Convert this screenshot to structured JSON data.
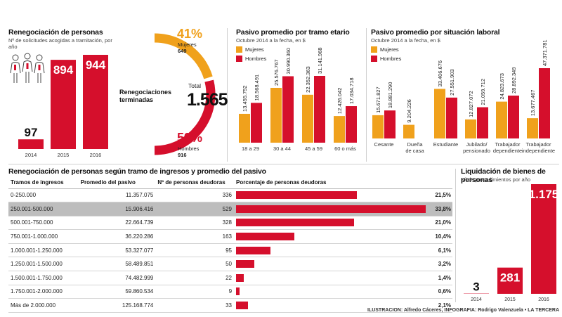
{
  "colors": {
    "red": "#d50f2c",
    "orange": "#f0a11c",
    "gray": "#bdbdbd"
  },
  "reneg": {
    "title": "Renegociación de personas",
    "subtitle": "Nº de solicitudes acogidas a tramitación, por año"
  },
  "donut": {
    "center_label": "Renegociaciones terminadas",
    "total_label": "Total",
    "total_value": "1.565",
    "mujeres_pct": "41%",
    "mujeres_label": "Mujeres",
    "mujeres_count": "649",
    "hombres_pct": "59%",
    "hombres_label": "Hombres",
    "hombres_count": "916"
  },
  "edad": {
    "title": "Pasivo promedio por tramo etario",
    "subtitle": "Octubre 2014 a la fecha, en $",
    "legend_mujeres": "Mujeres",
    "legend_hombres": "Hombres"
  },
  "laboral": {
    "title": "Pasivo promedio por situación laboral",
    "subtitle": "Octubre 2014 a la fecha, en $",
    "legend_mujeres": "Mujeres",
    "legend_hombres": "Hombres"
  },
  "tabla": {
    "title": "Renegociación de personas según tramo de ingresos y promedio del pasivo",
    "headers": [
      "Tramos de ingresos",
      "Promedio del pasivo",
      "Nº de personas deudoras",
      "Porcentaje de personas deudoras"
    ]
  },
  "liquidacion": {
    "title": "Liquidación de bienes de personas",
    "subtitle": "Nº de procedimientos por año"
  },
  "credit": "ILUSTRACION: Alfredo Cáceres, INFOGRAFIA: Rodrigo Valenzuela • LA TERCERA",
  "chart_data": [
    {
      "type": "bar",
      "title": "Renegociación de personas",
      "categories": [
        "2014",
        "2015",
        "2016"
      ],
      "values": [
        97,
        894,
        944
      ]
    },
    {
      "type": "pie",
      "title": "Renegociaciones terminadas",
      "categories": [
        "Mujeres",
        "Hombres"
      ],
      "values": [
        649,
        916
      ],
      "percent": [
        41,
        59
      ],
      "total": 1565
    },
    {
      "type": "bar",
      "title": "Pasivo promedio por tramo etario",
      "categories": [
        "18 a 29",
        "30 a 44",
        "45 a 59",
        "60 o más"
      ],
      "series": [
        {
          "name": "Mujeres",
          "values": [
            13455752,
            25576767,
            22352363,
            12426042
          ],
          "labels": [
            "13.455.752",
            "25.576.767",
            "22.352.363",
            "12.426.042"
          ]
        },
        {
          "name": "Hombres",
          "values": [
            18568491,
            30990360,
            31141968,
            17034718
          ],
          "labels": [
            "18.568.491",
            "30.990.360",
            "31.141.968",
            "17.034.718"
          ]
        }
      ]
    },
    {
      "type": "bar",
      "title": "Pasivo promedio por situación laboral",
      "categories": [
        "Cesante",
        "Dueña de casa",
        "Estudiante",
        "Jubilado/ pensionado",
        "Trabajador dependiente",
        "Trabajador independiente"
      ],
      "series": [
        {
          "name": "Mujeres",
          "values": [
            15671827,
            9204226,
            33406676,
            12827072,
            24823673,
            13677467
          ],
          "labels": [
            "15.671.827",
            "9.204.226",
            "33.406.676",
            "12.827.072",
            "24.823.673",
            "13.677.467"
          ]
        },
        {
          "name": "Hombres",
          "values": [
            18881290,
            null,
            27551903,
            21059712,
            28892349,
            47371781
          ],
          "labels": [
            "18.881.290",
            "",
            "27.551.903",
            "21.059.712",
            "28.892.349",
            "47.371.781"
          ]
        }
      ]
    },
    {
      "type": "table",
      "title": "Renegociación de personas según tramo de ingresos y promedio del pasivo",
      "rows": [
        {
          "tramo": "0-250.000",
          "pasivo": "11.357.075",
          "personas": "336",
          "pct": 21.5,
          "pct_label": "21,5%"
        },
        {
          "tramo": "250.001-500.000",
          "pasivo": "15.906.416",
          "personas": "529",
          "pct": 33.8,
          "pct_label": "33,8%",
          "highlight": true
        },
        {
          "tramo": "500.001-750.000",
          "pasivo": "22.664.739",
          "personas": "328",
          "pct": 21.0,
          "pct_label": "21,0%"
        },
        {
          "tramo": "750.001-1.000.000",
          "pasivo": "36.220.286",
          "personas": "163",
          "pct": 10.4,
          "pct_label": "10,4%"
        },
        {
          "tramo": "1.000.001-1.250.000",
          "pasivo": "53.327.077",
          "personas": "95",
          "pct": 6.1,
          "pct_label": "6,1%"
        },
        {
          "tramo": "1.250.001-1.500.000",
          "pasivo": "58.489.851",
          "personas": "50",
          "pct": 3.2,
          "pct_label": "3,2%"
        },
        {
          "tramo": "1.500.001-1.750.000",
          "pasivo": "74.482.999",
          "personas": "22",
          "pct": 1.4,
          "pct_label": "1,4%"
        },
        {
          "tramo": "1.750.001-2.000.000",
          "pasivo": "59.860.534",
          "personas": "9",
          "pct": 0.6,
          "pct_label": "0,6%"
        },
        {
          "tramo": "Más de 2.000.000",
          "pasivo": "125.168.774",
          "personas": "33",
          "pct": 2.1,
          "pct_label": "2,1%"
        }
      ]
    },
    {
      "type": "bar",
      "title": "Liquidación de bienes de personas",
      "categories": [
        "2014",
        "2015",
        "2016"
      ],
      "values": [
        3,
        281,
        1175
      ],
      "labels": [
        "3",
        "281",
        "1.175"
      ]
    }
  ]
}
